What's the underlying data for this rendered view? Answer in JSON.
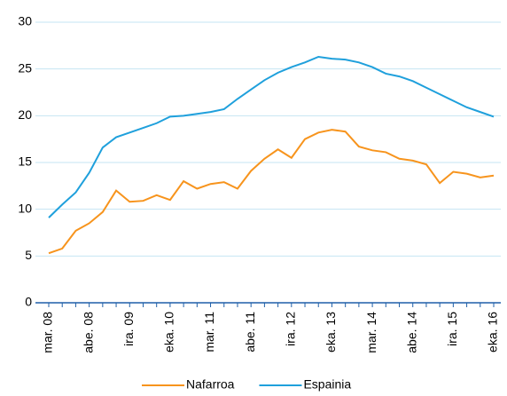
{
  "chart_data": {
    "type": "line",
    "categories": [
      "mar. 08",
      null,
      null,
      "abe. 08",
      null,
      null,
      "ira. 09",
      null,
      null,
      "eka. 10",
      null,
      null,
      "mar. 11",
      null,
      null,
      "abe. 11",
      null,
      null,
      "ira. 12",
      null,
      null,
      "eka. 13",
      null,
      null,
      "mar. 14",
      null,
      null,
      "abe. 14",
      null,
      null,
      "ira. 15",
      null,
      null,
      "eka. 16"
    ],
    "series": [
      {
        "name": "Nafarroa",
        "color": "#f7941d",
        "values": [
          5.3,
          5.8,
          7.7,
          8.5,
          9.7,
          12.0,
          10.8,
          10.9,
          11.5,
          11.0,
          13.0,
          12.2,
          12.7,
          12.9,
          12.2,
          14.1,
          15.4,
          16.4,
          15.5,
          17.5,
          18.2,
          18.5,
          18.3,
          16.7,
          16.3,
          16.1,
          15.4,
          15.2,
          14.8,
          12.8,
          14.0,
          13.8,
          13.4,
          13.6
        ]
      },
      {
        "name": "Espainia",
        "color": "#1fa0dc",
        "values": [
          9.1,
          10.5,
          11.8,
          13.9,
          16.6,
          17.7,
          18.2,
          18.7,
          19.2,
          19.9,
          20.0,
          20.2,
          20.4,
          20.7,
          21.8,
          22.8,
          23.8,
          24.6,
          25.2,
          25.7,
          26.3,
          26.1,
          26.0,
          25.7,
          25.2,
          24.5,
          24.2,
          23.7,
          23.0,
          22.3,
          21.6,
          20.9,
          20.4,
          19.9
        ]
      }
    ],
    "ylim": [
      0,
      30
    ],
    "yticks": [
      0,
      5,
      10,
      15,
      20,
      25,
      30
    ],
    "grid": true,
    "legend": "bottom"
  }
}
